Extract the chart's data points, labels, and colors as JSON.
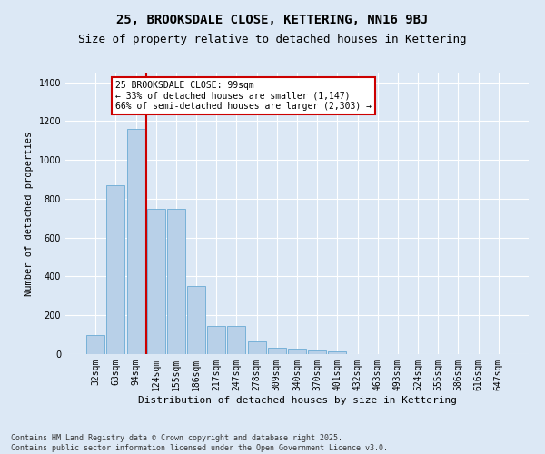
{
  "title": "25, BROOKSDALE CLOSE, KETTERING, NN16 9BJ",
  "subtitle": "Size of property relative to detached houses in Kettering",
  "xlabel": "Distribution of detached houses by size in Kettering",
  "ylabel": "Number of detached properties",
  "categories": [
    "32sqm",
    "63sqm",
    "94sqm",
    "124sqm",
    "155sqm",
    "186sqm",
    "217sqm",
    "247sqm",
    "278sqm",
    "309sqm",
    "340sqm",
    "370sqm",
    "401sqm",
    "432sqm",
    "463sqm",
    "493sqm",
    "524sqm",
    "555sqm",
    "586sqm",
    "616sqm",
    "647sqm"
  ],
  "values": [
    100,
    870,
    1160,
    750,
    750,
    350,
    145,
    145,
    65,
    35,
    30,
    20,
    15,
    0,
    0,
    0,
    0,
    0,
    0,
    0,
    0
  ],
  "bar_color": "#b8d0e8",
  "bar_edge_color": "#6aaad4",
  "vline_x_index": 2,
  "vline_color": "#cc0000",
  "annotation_text": "25 BROOKSDALE CLOSE: 99sqm\n← 33% of detached houses are smaller (1,147)\n66% of semi-detached houses are larger (2,303) →",
  "annotation_box_color": "#ffffff",
  "annotation_box_edge": "#cc0000",
  "ylim": [
    0,
    1450
  ],
  "yticks": [
    0,
    200,
    400,
    600,
    800,
    1000,
    1200,
    1400
  ],
  "bg_color": "#dce8f5",
  "grid_color": "#ffffff",
  "footer": "Contains HM Land Registry data © Crown copyright and database right 2025.\nContains public sector information licensed under the Open Government Licence v3.0.",
  "title_fontsize": 10,
  "subtitle_fontsize": 9,
  "xlabel_fontsize": 8,
  "ylabel_fontsize": 7.5,
  "tick_fontsize": 7,
  "footer_fontsize": 6
}
